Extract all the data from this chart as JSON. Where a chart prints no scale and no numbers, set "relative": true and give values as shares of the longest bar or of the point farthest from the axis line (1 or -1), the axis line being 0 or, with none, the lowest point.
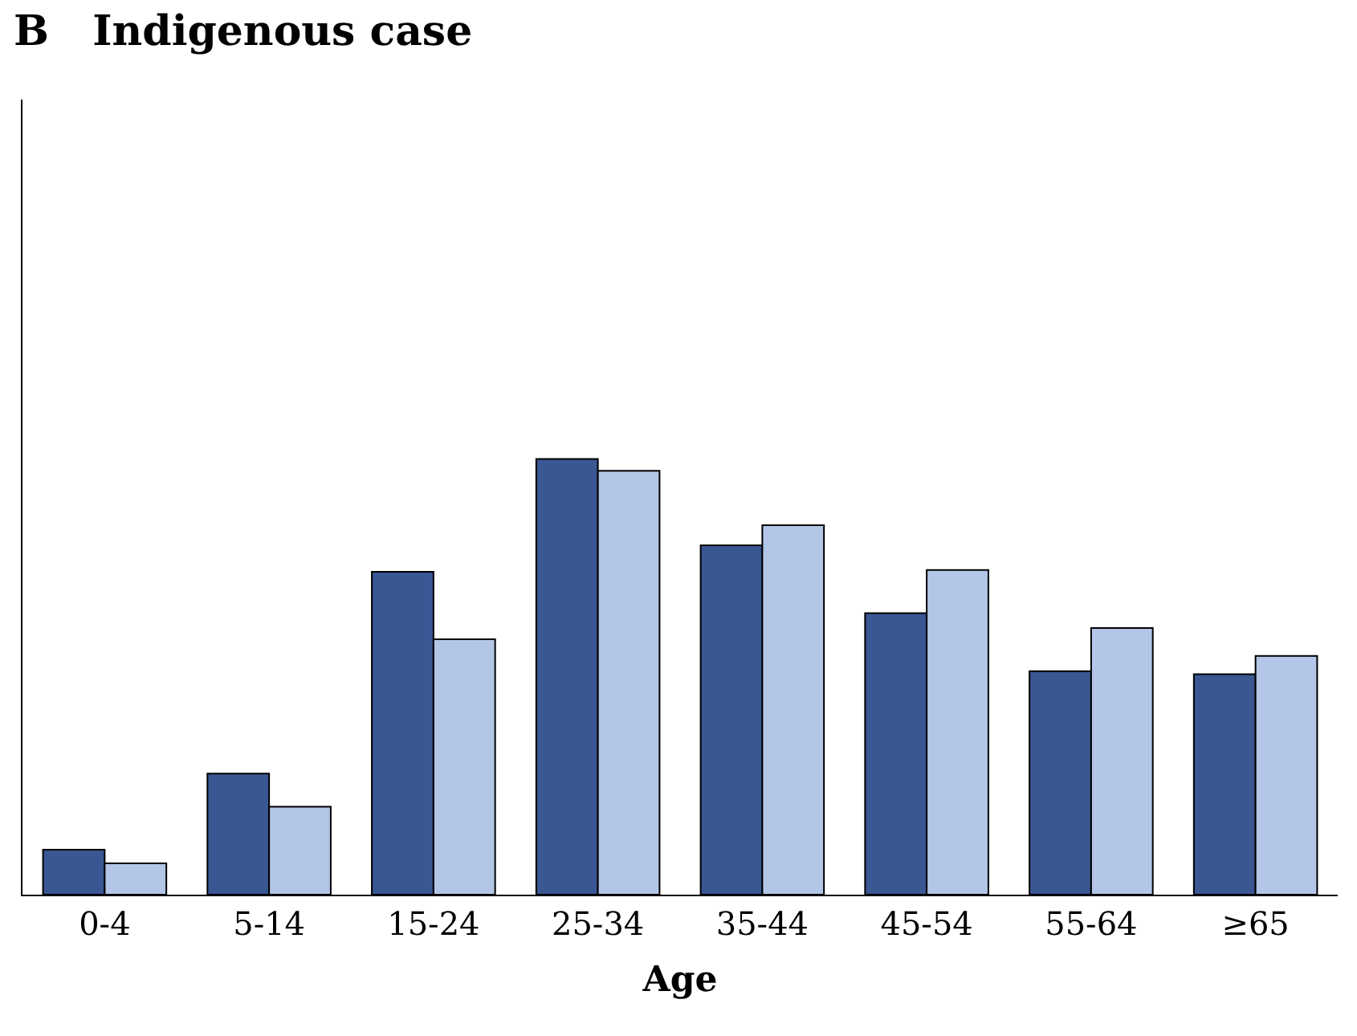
{
  "chart_data": {
    "type": "bar",
    "title": "B   Indigenous case",
    "xlabel": "Age",
    "relative": true,
    "categories": [
      "0-4",
      "5-14",
      "15-24",
      "25-34",
      "35-44",
      "45-54",
      "55-64",
      "≥65"
    ],
    "series": [
      {
        "color": "#3a5793",
        "values": [
          0.103,
          0.278,
          0.741,
          1,
          0.802,
          0.646,
          0.513,
          0.506
        ]
      },
      {
        "color": "#b4c6e7",
        "values": [
          0.072,
          0.202,
          0.586,
          0.973,
          0.848,
          0.745,
          0.612,
          0.548
        ]
      }
    ]
  }
}
